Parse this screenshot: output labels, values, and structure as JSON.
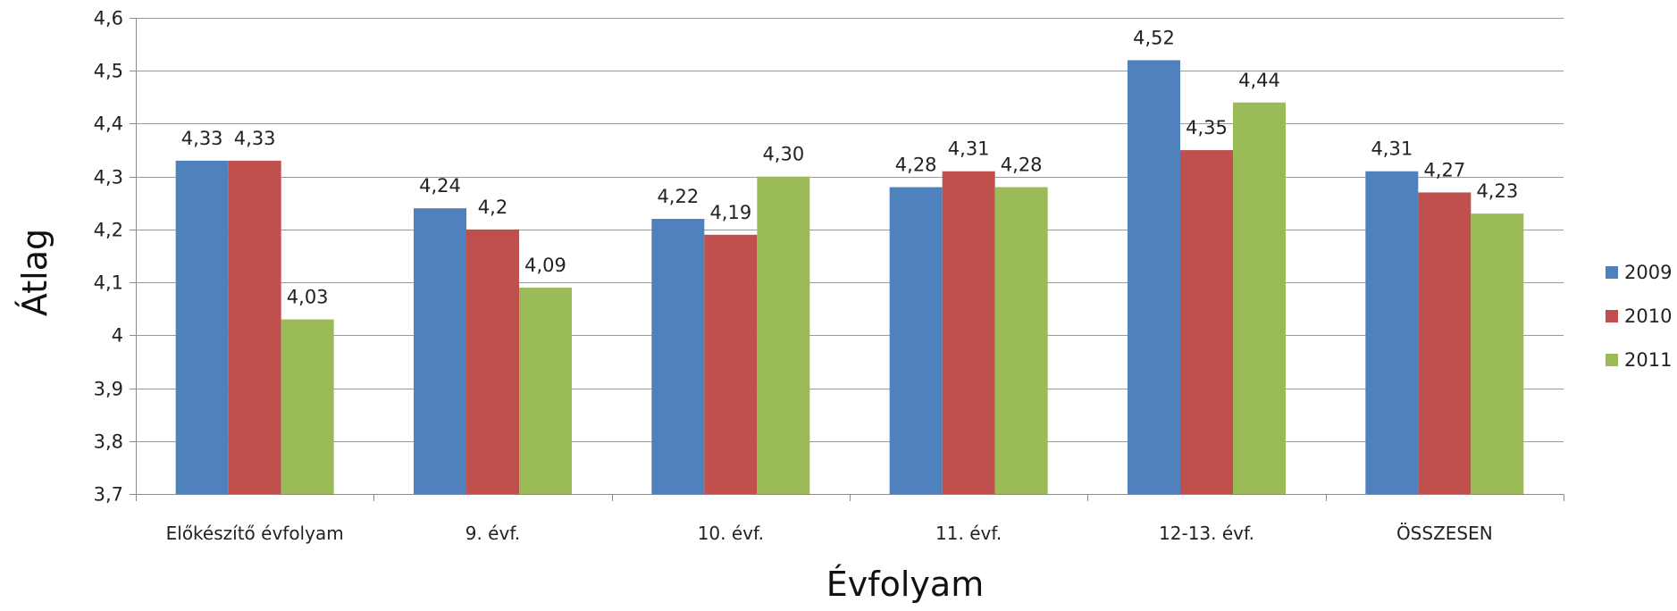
{
  "chart_data": {
    "type": "bar",
    "title": "",
    "xlabel": "Évfolyam",
    "ylabel": "Átlag",
    "ylim": [
      3.7,
      4.6
    ],
    "yticks": [
      "3,7",
      "3,8",
      "3,9",
      "4",
      "4,1",
      "4,2",
      "4,3",
      "4,4",
      "4,5",
      "4,6"
    ],
    "grid": true,
    "legend_position": "right",
    "categories": [
      "Előkészítő évfolyam",
      "9. évf.",
      "10. évf.",
      "11. évf.",
      "12-13. évf.",
      "ÖSSZESEN"
    ],
    "series": [
      {
        "name": "2009",
        "color": "#4F81BD",
        "values": [
          4.33,
          4.24,
          4.22,
          4.28,
          4.52,
          4.31
        ],
        "labels": [
          "4,33",
          "4,24",
          "4,22",
          "4,28",
          "4,52",
          "4,31"
        ]
      },
      {
        "name": "2010",
        "color": "#C0504D",
        "values": [
          4.33,
          4.2,
          4.19,
          4.31,
          4.35,
          4.27
        ],
        "labels": [
          "4,33",
          "4,2",
          "4,19",
          "4,31",
          "4,35",
          "4,27"
        ]
      },
      {
        "name": "2011",
        "color": "#9BBB59",
        "values": [
          4.03,
          4.09,
          4.3,
          4.28,
          4.44,
          4.23
        ],
        "labels": [
          "4,03",
          "4,09",
          "4,30",
          "4,28",
          "4,44",
          "4,23"
        ]
      }
    ]
  }
}
